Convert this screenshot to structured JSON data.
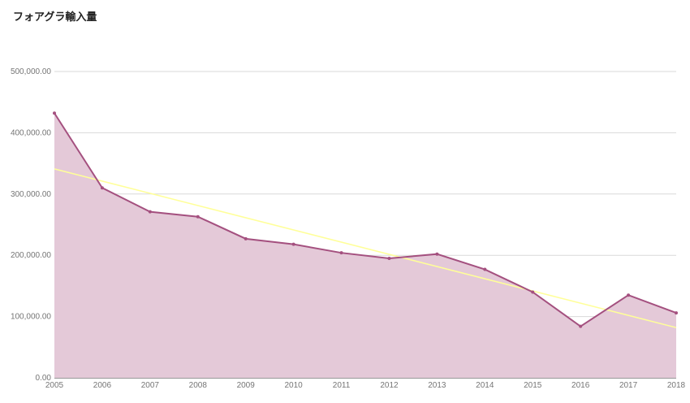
{
  "chart_data": {
    "type": "area",
    "title": "フォアグラ輸入量",
    "x": [
      "2005",
      "2006",
      "2007",
      "2008",
      "2009",
      "2010",
      "2011",
      "2012",
      "2013",
      "2014",
      "2015",
      "2016",
      "2017",
      "2018"
    ],
    "series": [
      {
        "values": [
          432000,
          310000,
          271000,
          263000,
          227000,
          218000,
          204000,
          195000,
          202000,
          177000,
          140000,
          84000,
          135000,
          106000
        ]
      }
    ],
    "trendline": {
      "type": "linear",
      "start": [
        2005,
        341000
      ],
      "end": [
        2018,
        82000
      ]
    },
    "yticks": [
      "0.00",
      "100,000.00",
      "200,000.00",
      "300,000.00",
      "400,000.00",
      "500,000.00"
    ],
    "ylim": [
      0,
      500000
    ],
    "grid": true,
    "colors": {
      "line": "#a4507f",
      "fill": "#e4c9d8",
      "trend": "#ffff99",
      "grid": "#d9d9d9"
    }
  }
}
